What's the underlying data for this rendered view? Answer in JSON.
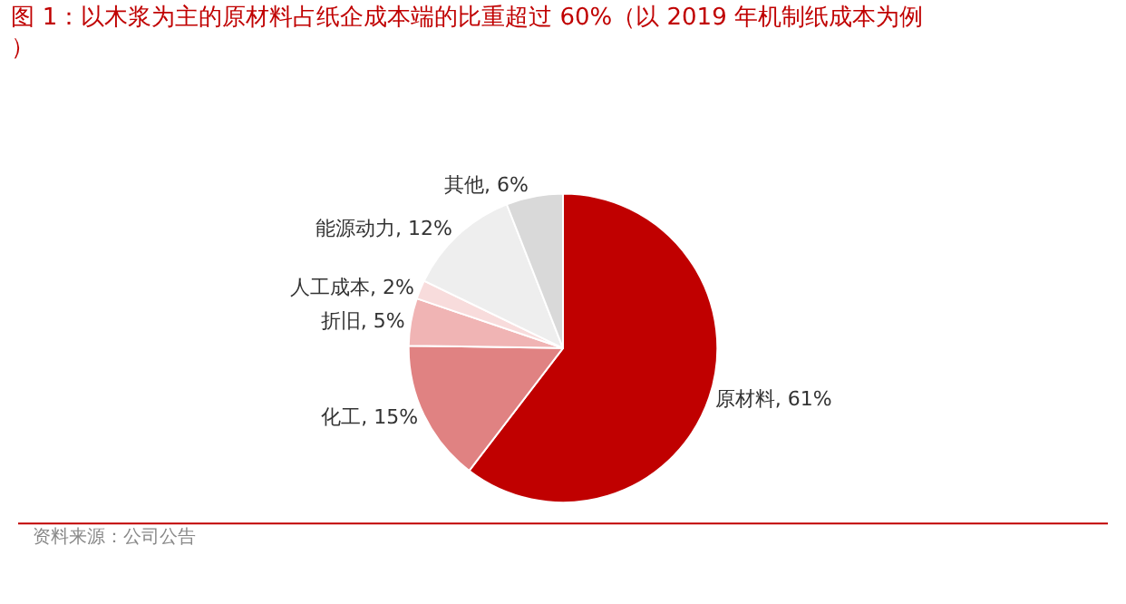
{
  "chart_data": {
    "type": "pie",
    "title": "图 1：以木浆为主的原材料占纸企成本端的比重超过 60%（以 2019 年机制纸成本为例）",
    "categories": [
      "原材料",
      "化工",
      "折旧",
      "人工成本",
      "能源动力",
      "其他"
    ],
    "values": [
      61,
      15,
      5,
      2,
      12,
      6
    ],
    "value_labels": [
      "61%",
      "15%",
      "5%",
      "2%",
      "12%",
      "6%"
    ],
    "colors": [
      "#c00000",
      "#e08282",
      "#f0b4b4",
      "#f8dcdc",
      "#eeeeee",
      "#d9d9d9"
    ],
    "legend": false,
    "annotations": [
      "资料来源：公司公告"
    ]
  }
}
